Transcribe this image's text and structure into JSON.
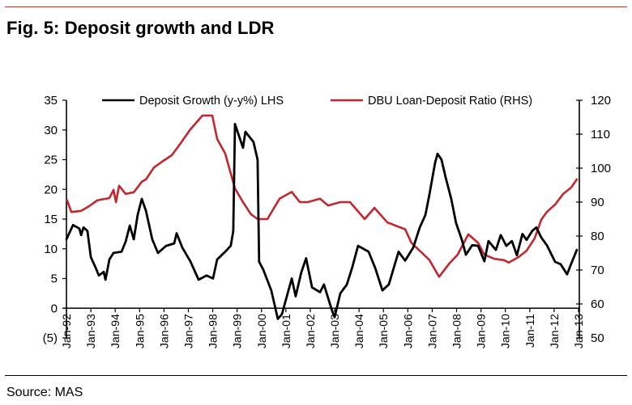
{
  "figure": {
    "title": "Fig. 5:  Deposit growth and LDR",
    "source": "Source: MAS"
  },
  "colors": {
    "deposit_growth": "#000000",
    "ldr": "#c1272d",
    "top_rule": "#b03a2e"
  },
  "chart_data": {
    "type": "line",
    "title": "Deposit growth and LDR",
    "xlabel": "",
    "ylabel_left": "",
    "ylabel_right": "",
    "x_tick_labels": [
      "Jan-92",
      "Jan-93",
      "Jan-94",
      "Jan-95",
      "Jan-96",
      "Jan-97",
      "Jan-98",
      "Jan-99",
      "Jan-00",
      "Jan-01",
      "Jan-02",
      "Jan-03",
      "Jan-04",
      "Jan-05",
      "Jan-06",
      "Jan-07",
      "Jan-08",
      "Jan-09",
      "Jan-10",
      "Jan-11",
      "Jan-12",
      "Jan-13"
    ],
    "x_tick_years": [
      1992,
      1993,
      1994,
      1995,
      1996,
      1997,
      1998,
      1999,
      2000,
      2001,
      2002,
      2003,
      2004,
      2005,
      2006,
      2007,
      2008,
      2009,
      2010,
      2011,
      2012,
      2013
    ],
    "xlim": [
      1992,
      2013
    ],
    "ylim_left": [
      -5,
      35
    ],
    "y_ticks_left": [
      35,
      30,
      25,
      20,
      15,
      10,
      5,
      0,
      -5
    ],
    "y_tick_labels_left": [
      "35",
      "30",
      "25",
      "20",
      "15",
      "10",
      "5",
      "0",
      "(5)"
    ],
    "ylim_right": [
      50,
      120
    ],
    "y_ticks_right": [
      120,
      110,
      100,
      90,
      80,
      70,
      60,
      50
    ],
    "y_tick_labels_right": [
      "120",
      "110",
      "100",
      "90",
      "80",
      "70",
      "60",
      "50"
    ],
    "grid": false,
    "legend_position": "top",
    "series": [
      {
        "name": "Deposit Growth (y-y%) LHS",
        "axis": "left",
        "color": "#000000",
        "points": [
          [
            1992.0,
            11.6
          ],
          [
            1992.27,
            14
          ],
          [
            1992.53,
            13.4
          ],
          [
            1992.6,
            12.3
          ],
          [
            1992.7,
            13.6
          ],
          [
            1992.86,
            13
          ],
          [
            1993.0,
            8.6
          ],
          [
            1993.2,
            6.8
          ],
          [
            1993.33,
            5.5
          ],
          [
            1993.53,
            6.1
          ],
          [
            1993.6,
            4.8
          ],
          [
            1993.76,
            8.2
          ],
          [
            1993.93,
            9.3
          ],
          [
            1994.26,
            9.5
          ],
          [
            1994.43,
            11.2
          ],
          [
            1994.6,
            13.9
          ],
          [
            1994.76,
            11.6
          ],
          [
            1994.92,
            15.7
          ],
          [
            1995.09,
            18.4
          ],
          [
            1995.26,
            16.4
          ],
          [
            1995.52,
            11.6
          ],
          [
            1995.75,
            9.3
          ],
          [
            1996.09,
            10.5
          ],
          [
            1996.42,
            10.9
          ],
          [
            1996.52,
            12.6
          ],
          [
            1996.75,
            10.2
          ],
          [
            1997.08,
            7.9
          ],
          [
            1997.42,
            4.8
          ],
          [
            1997.75,
            5.5
          ],
          [
            1998.01,
            5
          ],
          [
            1998.18,
            8.2
          ],
          [
            1998.51,
            9.5
          ],
          [
            1998.74,
            10.5
          ],
          [
            1998.84,
            13
          ],
          [
            1998.91,
            31
          ],
          [
            1999.24,
            27
          ],
          [
            1999.34,
            29.7
          ],
          [
            1999.67,
            28
          ],
          [
            1999.84,
            25
          ],
          [
            1999.9,
            7.8
          ],
          [
            2000.07,
            6.5
          ],
          [
            2000.4,
            3
          ],
          [
            2000.67,
            -1.8
          ],
          [
            2000.84,
            -1
          ],
          [
            2000.97,
            1
          ],
          [
            2001.24,
            5
          ],
          [
            2001.4,
            2
          ],
          [
            2001.63,
            6
          ],
          [
            2001.83,
            8.4
          ],
          [
            2002.07,
            3.5
          ],
          [
            2002.4,
            2.7
          ],
          [
            2002.56,
            4
          ],
          [
            2002.9,
            -0.5
          ],
          [
            2003.0,
            -1.5
          ],
          [
            2003.23,
            2.5
          ],
          [
            2003.5,
            4
          ],
          [
            2003.73,
            7
          ],
          [
            2003.96,
            10.5
          ],
          [
            2004.39,
            9.5
          ],
          [
            2004.66,
            6.8
          ],
          [
            2004.96,
            3
          ],
          [
            2005.22,
            4
          ],
          [
            2005.62,
            9.5
          ],
          [
            2005.89,
            8
          ],
          [
            2006.22,
            10.2
          ],
          [
            2006.49,
            13.6
          ],
          [
            2006.72,
            15.7
          ],
          [
            2006.88,
            19
          ],
          [
            2007.12,
            24.5
          ],
          [
            2007.22,
            26
          ],
          [
            2007.38,
            25
          ],
          [
            2007.55,
            22
          ],
          [
            2007.78,
            18.4
          ],
          [
            2007.98,
            14.3
          ],
          [
            2008.21,
            11.6
          ],
          [
            2008.38,
            9
          ],
          [
            2008.64,
            10.6
          ],
          [
            2008.88,
            10.5
          ],
          [
            2009.14,
            7.9
          ],
          [
            2009.31,
            11.3
          ],
          [
            2009.61,
            9.8
          ],
          [
            2009.81,
            12.3
          ],
          [
            2010.04,
            10.5
          ],
          [
            2010.27,
            11.3
          ],
          [
            2010.47,
            8.9
          ],
          [
            2010.7,
            12.5
          ],
          [
            2010.87,
            11.5
          ],
          [
            2011.1,
            13
          ],
          [
            2011.27,
            13.6
          ],
          [
            2011.47,
            11.9
          ],
          [
            2011.7,
            10.6
          ],
          [
            2012.04,
            7.8
          ],
          [
            2012.27,
            7.4
          ],
          [
            2012.53,
            5.7
          ],
          [
            2012.7,
            7.5
          ],
          [
            2012.93,
            9.8
          ]
        ]
      },
      {
        "name": "DBU Loan-Deposit Ratio (RHS)",
        "axis": "right",
        "color": "#c1272d",
        "points": [
          [
            1992.03,
            90.5
          ],
          [
            1992.2,
            87.1
          ],
          [
            1992.6,
            87.4
          ],
          [
            1992.93,
            88.8
          ],
          [
            1993.26,
            90.5
          ],
          [
            1993.76,
            91.2
          ],
          [
            1993.93,
            93.6
          ],
          [
            1994.03,
            90
          ],
          [
            1994.16,
            94.8
          ],
          [
            1994.43,
            92.4
          ],
          [
            1994.76,
            92.9
          ],
          [
            1995.09,
            96
          ],
          [
            1995.26,
            96.7
          ],
          [
            1995.59,
            100.2
          ],
          [
            1995.92,
            101.9
          ],
          [
            1996.32,
            103.8
          ],
          [
            1996.65,
            107
          ],
          [
            1997.08,
            111.4
          ],
          [
            1997.58,
            115.5
          ],
          [
            1997.98,
            115.5
          ],
          [
            1998.18,
            108.6
          ],
          [
            1998.51,
            104.3
          ],
          [
            1998.91,
            94
          ],
          [
            1999.24,
            90
          ],
          [
            1999.57,
            86.4
          ],
          [
            1999.84,
            85
          ],
          [
            2000.24,
            85
          ],
          [
            2000.74,
            91
          ],
          [
            2001.24,
            93
          ],
          [
            2001.57,
            90
          ],
          [
            2001.9,
            90
          ],
          [
            2002.4,
            91
          ],
          [
            2002.73,
            89
          ],
          [
            2003.23,
            90
          ],
          [
            2003.63,
            90
          ],
          [
            2004.23,
            85
          ],
          [
            2004.63,
            88.3
          ],
          [
            2005.16,
            84
          ],
          [
            2005.89,
            82
          ],
          [
            2006.15,
            78
          ],
          [
            2006.88,
            73
          ],
          [
            2007.28,
            68
          ],
          [
            2007.71,
            72
          ],
          [
            2008.04,
            74.5
          ],
          [
            2008.48,
            80.5
          ],
          [
            2008.88,
            78
          ],
          [
            2009.14,
            74.5
          ],
          [
            2009.54,
            73.3
          ],
          [
            2009.94,
            72.9
          ],
          [
            2010.14,
            72.2
          ],
          [
            2010.54,
            73.8
          ],
          [
            2010.87,
            75.7
          ],
          [
            2011.2,
            79.3
          ],
          [
            2011.47,
            84.8
          ],
          [
            2011.7,
            87.1
          ],
          [
            2012.04,
            89.3
          ],
          [
            2012.37,
            92.4
          ],
          [
            2012.7,
            94.3
          ],
          [
            2012.93,
            96.7
          ]
        ]
      }
    ]
  }
}
